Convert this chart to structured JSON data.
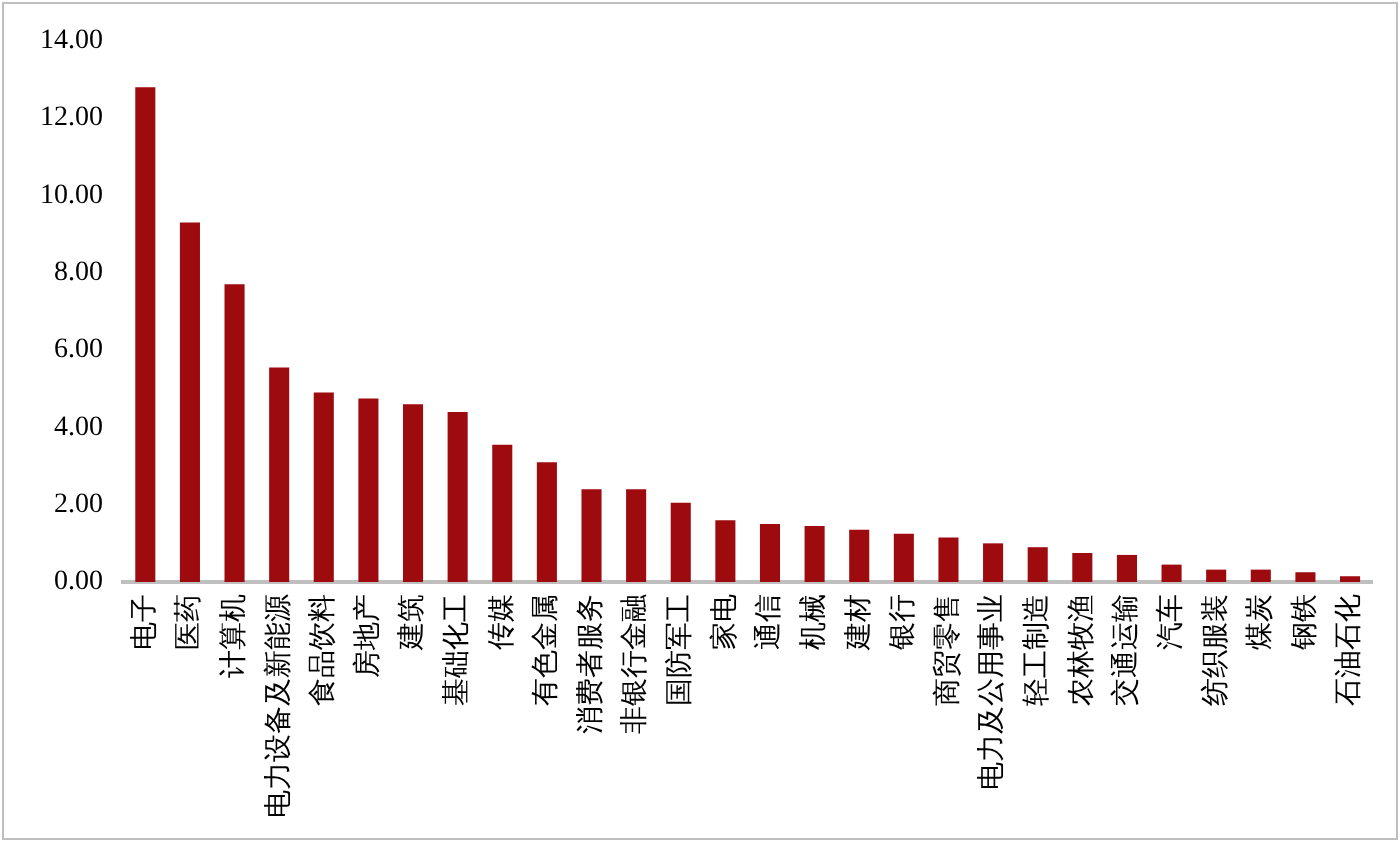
{
  "chart_data": {
    "type": "bar",
    "categories": [
      "电子",
      "医药",
      "计算机",
      "电力设备及新能源",
      "食品饮料",
      "房地产",
      "建筑",
      "基础化工",
      "传媒",
      "有色金属",
      "消费者服务",
      "非银行金融",
      "国防军工",
      "家电",
      "通信",
      "机械",
      "建材",
      "银行",
      "商贸零售",
      "电力及公用事业",
      "轻工制造",
      "农林牧渔",
      "交通运输",
      "汽车",
      "纺织服装",
      "煤炭",
      "钢铁",
      "石油石化"
    ],
    "values": [
      12.8,
      9.3,
      7.7,
      5.55,
      4.9,
      4.75,
      4.6,
      4.4,
      3.55,
      3.1,
      2.4,
      2.4,
      2.05,
      1.6,
      1.5,
      1.45,
      1.35,
      1.25,
      1.15,
      1.0,
      0.9,
      0.75,
      0.7,
      0.45,
      0.32,
      0.32,
      0.25,
      0.15
    ],
    "color": "#9e0b0f",
    "ylim": [
      0,
      14
    ],
    "yticks": [
      {
        "value": 0,
        "label": "0.00"
      },
      {
        "value": 2,
        "label": "2.00"
      },
      {
        "value": 4,
        "label": "4.00"
      },
      {
        "value": 6,
        "label": "6.00"
      },
      {
        "value": 8,
        "label": "8.00"
      },
      {
        "value": 10,
        "label": "10.00"
      },
      {
        "value": 12,
        "label": "12.00"
      },
      {
        "value": 14,
        "label": "14.00"
      }
    ],
    "grid": false,
    "legend": false
  }
}
